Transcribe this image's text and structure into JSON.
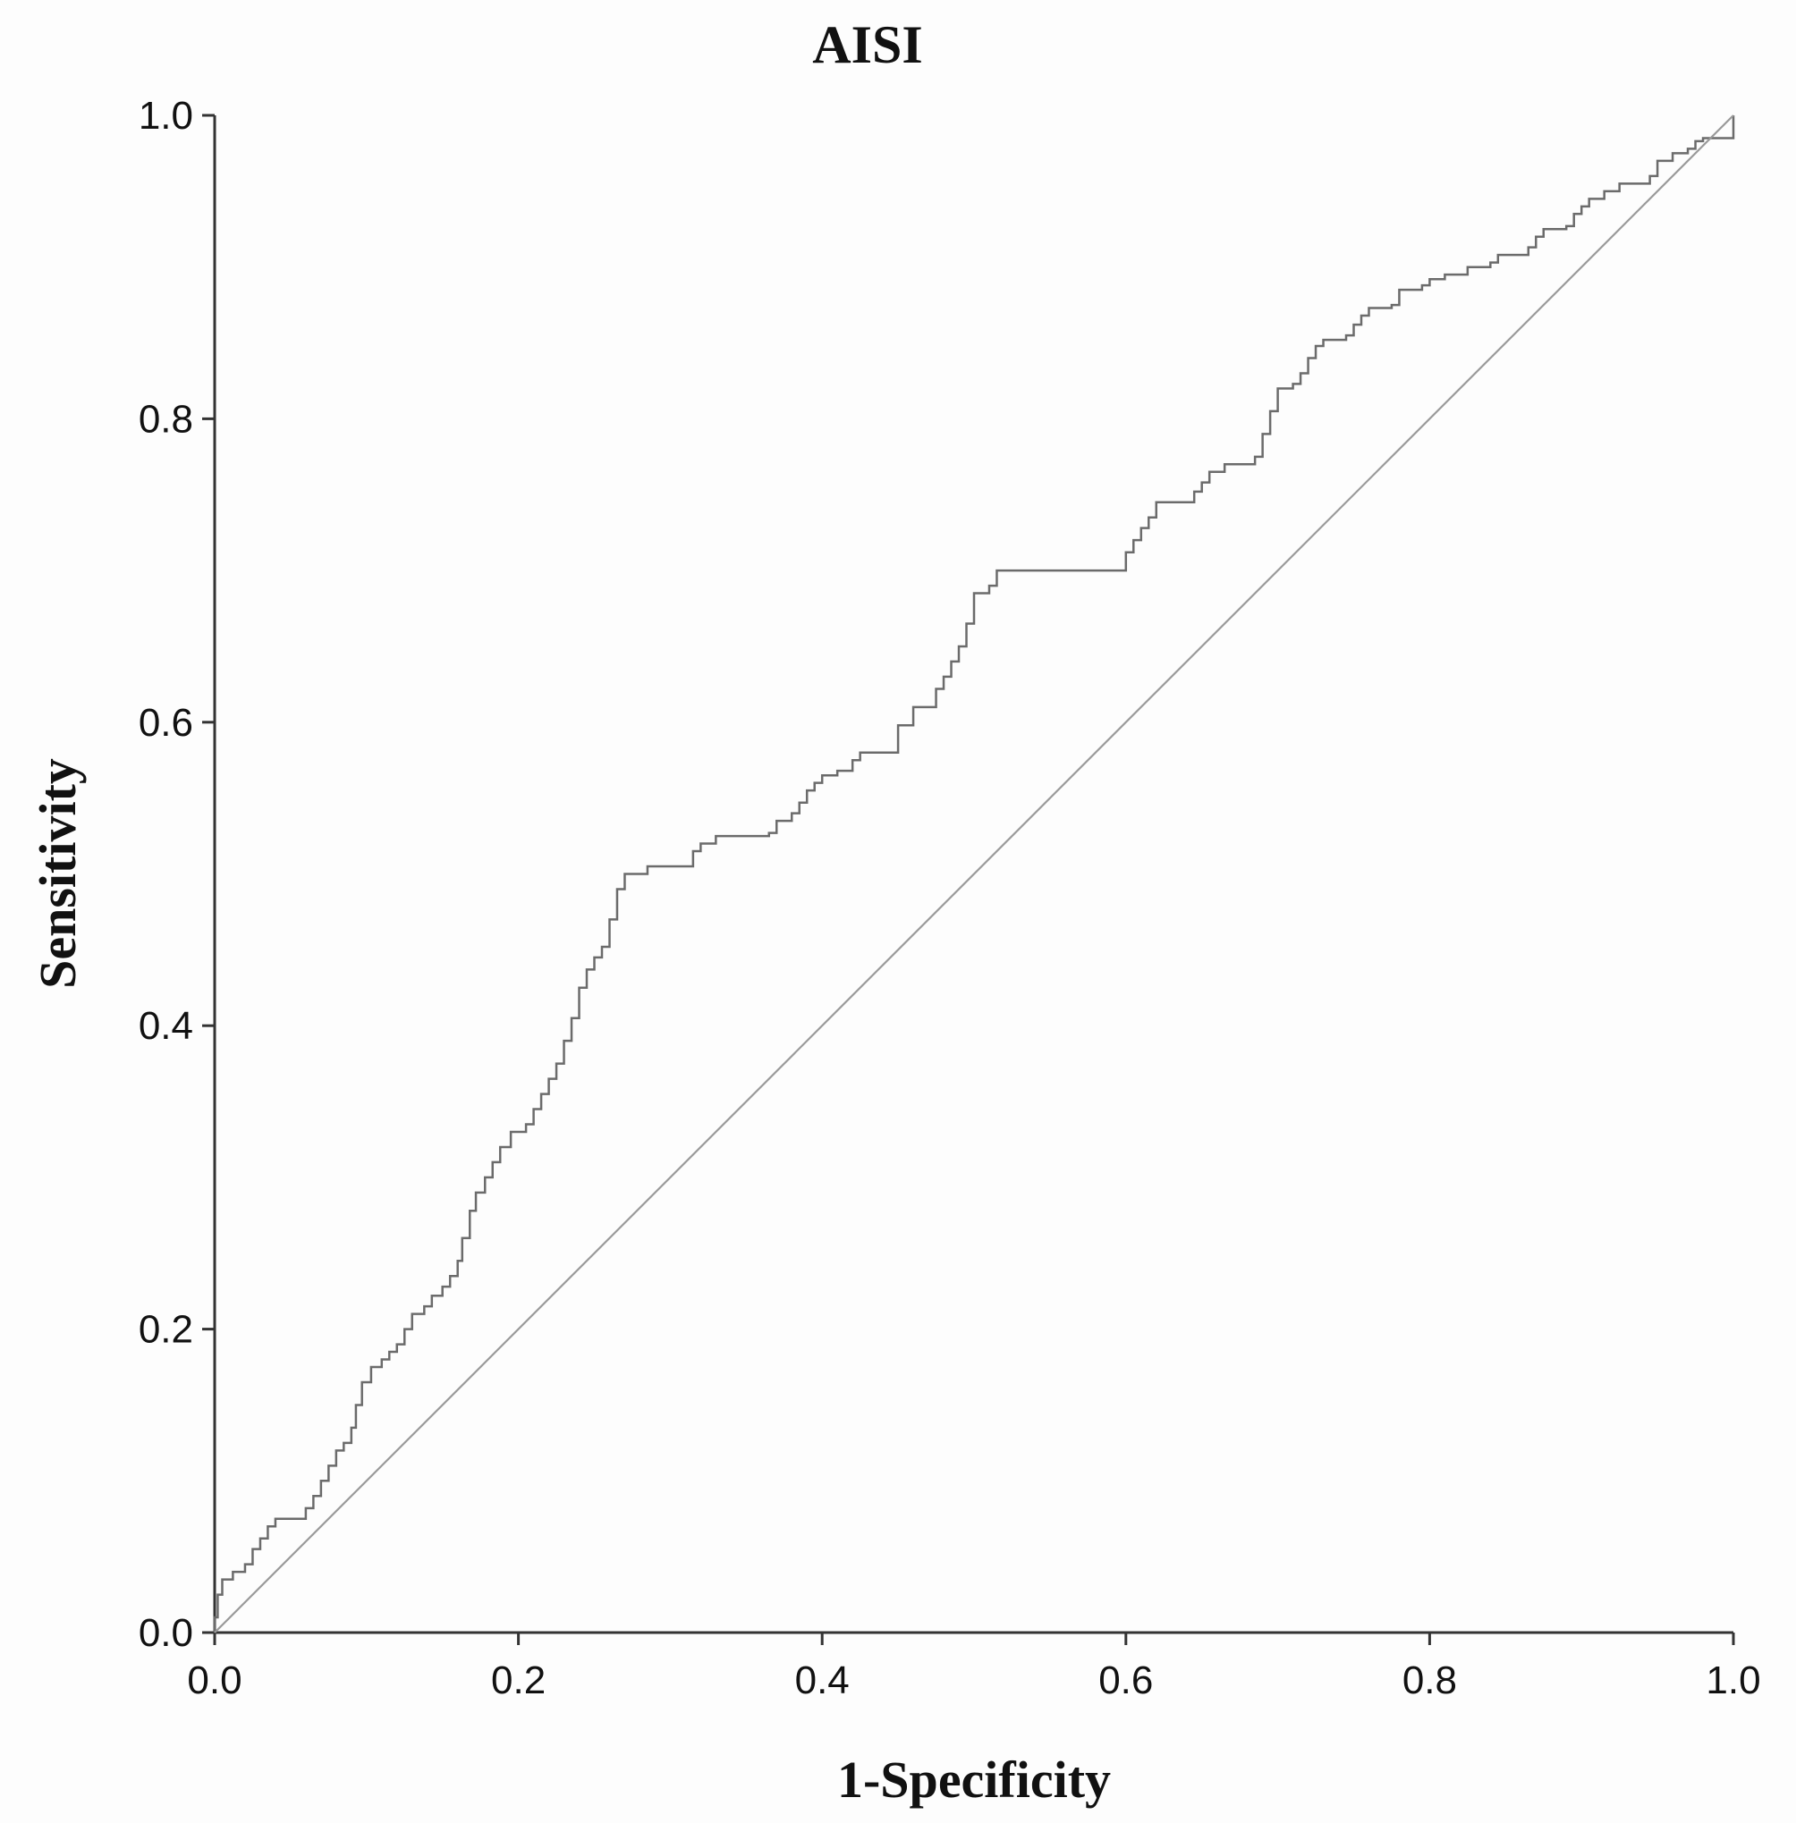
{
  "chart_data": {
    "type": "line",
    "title": "AISI",
    "xlabel": "1-Specificity",
    "ylabel": "Sensitivity",
    "xlim": [
      0,
      1
    ],
    "ylim": [
      0,
      1
    ],
    "xticks": [
      "0.0",
      "0.2",
      "0.4",
      "0.6",
      "0.8",
      "1.0"
    ],
    "yticks": [
      "0.0",
      "0.2",
      "0.4",
      "0.6",
      "0.8",
      "1.0"
    ],
    "grid": false,
    "legend": "none",
    "colors": {
      "roc": "#6b6b6b",
      "reference": "#9a9a9a",
      "axis": "#333333"
    },
    "series": [
      {
        "role": "roc",
        "points": [
          [
            0.0,
            0.0
          ],
          [
            0.0,
            0.01
          ],
          [
            0.002,
            0.025
          ],
          [
            0.005,
            0.035
          ],
          [
            0.012,
            0.04
          ],
          [
            0.02,
            0.045
          ],
          [
            0.025,
            0.055
          ],
          [
            0.03,
            0.062
          ],
          [
            0.035,
            0.07
          ],
          [
            0.04,
            0.075
          ],
          [
            0.055,
            0.075
          ],
          [
            0.06,
            0.082
          ],
          [
            0.065,
            0.09
          ],
          [
            0.07,
            0.1
          ],
          [
            0.075,
            0.11
          ],
          [
            0.08,
            0.12
          ],
          [
            0.085,
            0.125
          ],
          [
            0.09,
            0.135
          ],
          [
            0.093,
            0.15
          ],
          [
            0.097,
            0.165
          ],
          [
            0.103,
            0.175
          ],
          [
            0.11,
            0.18
          ],
          [
            0.115,
            0.185
          ],
          [
            0.12,
            0.19
          ],
          [
            0.125,
            0.2
          ],
          [
            0.13,
            0.21
          ],
          [
            0.138,
            0.215
          ],
          [
            0.143,
            0.222
          ],
          [
            0.15,
            0.228
          ],
          [
            0.155,
            0.235
          ],
          [
            0.16,
            0.245
          ],
          [
            0.163,
            0.26
          ],
          [
            0.168,
            0.278
          ],
          [
            0.172,
            0.29
          ],
          [
            0.178,
            0.3
          ],
          [
            0.183,
            0.31
          ],
          [
            0.188,
            0.32
          ],
          [
            0.195,
            0.33
          ],
          [
            0.205,
            0.335
          ],
          [
            0.21,
            0.345
          ],
          [
            0.215,
            0.355
          ],
          [
            0.22,
            0.365
          ],
          [
            0.225,
            0.375
          ],
          [
            0.23,
            0.39
          ],
          [
            0.235,
            0.405
          ],
          [
            0.24,
            0.425
          ],
          [
            0.245,
            0.437
          ],
          [
            0.25,
            0.445
          ],
          [
            0.255,
            0.452
          ],
          [
            0.26,
            0.47
          ],
          [
            0.265,
            0.49
          ],
          [
            0.27,
            0.5
          ],
          [
            0.285,
            0.505
          ],
          [
            0.31,
            0.505
          ],
          [
            0.315,
            0.515
          ],
          [
            0.32,
            0.52
          ],
          [
            0.33,
            0.525
          ],
          [
            0.365,
            0.527
          ],
          [
            0.37,
            0.535
          ],
          [
            0.38,
            0.54
          ],
          [
            0.385,
            0.547
          ],
          [
            0.39,
            0.555
          ],
          [
            0.395,
            0.56
          ],
          [
            0.4,
            0.565
          ],
          [
            0.41,
            0.568
          ],
          [
            0.42,
            0.575
          ],
          [
            0.425,
            0.58
          ],
          [
            0.445,
            0.58
          ],
          [
            0.45,
            0.598
          ],
          [
            0.46,
            0.61
          ],
          [
            0.47,
            0.61
          ],
          [
            0.475,
            0.622
          ],
          [
            0.48,
            0.63
          ],
          [
            0.485,
            0.64
          ],
          [
            0.49,
            0.65
          ],
          [
            0.495,
            0.665
          ],
          [
            0.5,
            0.685
          ],
          [
            0.51,
            0.69
          ],
          [
            0.515,
            0.7
          ],
          [
            0.595,
            0.7
          ],
          [
            0.6,
            0.712
          ],
          [
            0.605,
            0.72
          ],
          [
            0.61,
            0.728
          ],
          [
            0.615,
            0.735
          ],
          [
            0.62,
            0.745
          ],
          [
            0.64,
            0.745
          ],
          [
            0.645,
            0.752
          ],
          [
            0.65,
            0.758
          ],
          [
            0.655,
            0.765
          ],
          [
            0.665,
            0.77
          ],
          [
            0.685,
            0.775
          ],
          [
            0.69,
            0.79
          ],
          [
            0.695,
            0.805
          ],
          [
            0.7,
            0.82
          ],
          [
            0.71,
            0.823
          ],
          [
            0.715,
            0.83
          ],
          [
            0.72,
            0.84
          ],
          [
            0.725,
            0.848
          ],
          [
            0.73,
            0.852
          ],
          [
            0.745,
            0.855
          ],
          [
            0.75,
            0.862
          ],
          [
            0.755,
            0.868
          ],
          [
            0.76,
            0.873
          ],
          [
            0.775,
            0.875
          ],
          [
            0.78,
            0.885
          ],
          [
            0.795,
            0.888
          ],
          [
            0.8,
            0.892
          ],
          [
            0.81,
            0.895
          ],
          [
            0.82,
            0.895
          ],
          [
            0.825,
            0.9
          ],
          [
            0.84,
            0.903
          ],
          [
            0.845,
            0.908
          ],
          [
            0.865,
            0.913
          ],
          [
            0.87,
            0.92
          ],
          [
            0.875,
            0.925
          ],
          [
            0.89,
            0.927
          ],
          [
            0.895,
            0.935
          ],
          [
            0.9,
            0.94
          ],
          [
            0.905,
            0.945
          ],
          [
            0.915,
            0.95
          ],
          [
            0.925,
            0.955
          ],
          [
            0.945,
            0.96
          ],
          [
            0.95,
            0.97
          ],
          [
            0.96,
            0.975
          ],
          [
            0.97,
            0.978
          ],
          [
            0.975,
            0.983
          ],
          [
            0.98,
            0.985
          ],
          [
            1.0,
            1.0
          ]
        ]
      },
      {
        "role": "reference",
        "points": [
          [
            0,
            0
          ],
          [
            1,
            1
          ]
        ]
      }
    ]
  }
}
